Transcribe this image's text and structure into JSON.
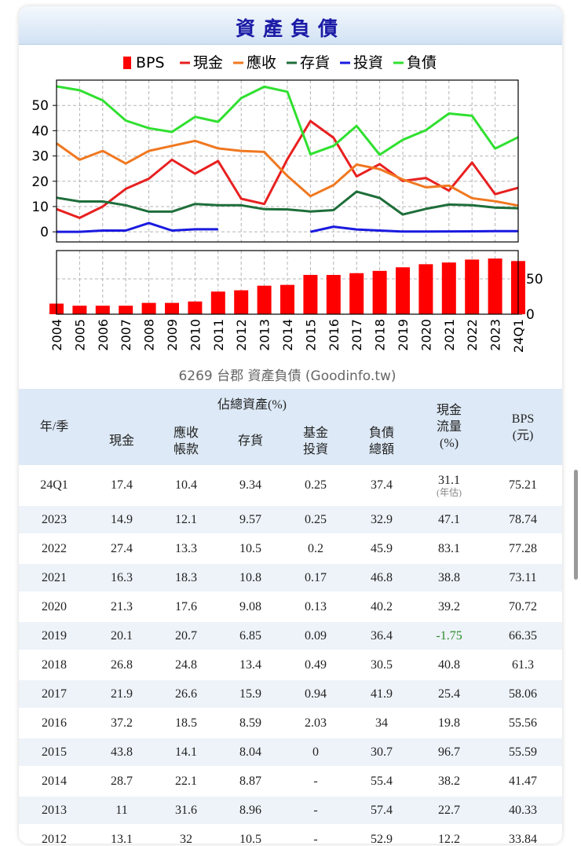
{
  "title": "資產負債",
  "chart_data": {
    "type": "line",
    "x": [
      "2004",
      "2005",
      "2006",
      "2007",
      "2008",
      "2009",
      "2010",
      "2011",
      "2012",
      "2013",
      "2014",
      "2015",
      "2016",
      "2017",
      "2018",
      "2019",
      "2020",
      "2021",
      "2022",
      "2023",
      "24Q1"
    ],
    "legend": [
      "BPS",
      "現金",
      "應收",
      "存貨",
      "投資",
      "負債"
    ],
    "caption": "6269 台郡 資產負債 (Goodinfo.tw)",
    "left_axis": {
      "ylim": [
        -4,
        60
      ],
      "ticks": [
        0,
        10,
        20,
        30,
        40,
        50
      ]
    },
    "right_axis": {
      "ylim": [
        0,
        90
      ],
      "ticks": [
        0,
        50
      ]
    },
    "bps": [
      15,
      12,
      12,
      12,
      16,
      16,
      18,
      32,
      33.84,
      40.33,
      41.47,
      55.59,
      55.56,
      58.06,
      61.3,
      66.35,
      70.72,
      73.11,
      77.28,
      78.74,
      75.21
    ],
    "series": [
      {
        "name": "現金",
        "color": "#e82020",
        "values": [
          9,
          5.5,
          10,
          17,
          21,
          28.5,
          23,
          28,
          13.1,
          11,
          28.7,
          43.8,
          37.2,
          21.9,
          26.8,
          20.1,
          21.3,
          16.3,
          27.4,
          14.9,
          17.4
        ]
      },
      {
        "name": "應收",
        "color": "#f07820",
        "values": [
          35,
          28.5,
          32,
          27,
          32,
          34,
          36,
          33,
          32,
          31.6,
          22.1,
          14.1,
          18.5,
          26.6,
          24.8,
          20.7,
          17.6,
          18.3,
          13.3,
          12.1,
          10.4
        ]
      },
      {
        "name": "存貨",
        "color": "#1e6e3a",
        "values": [
          13.5,
          12,
          12,
          10.5,
          8,
          8,
          11,
          10.5,
          10.5,
          8.96,
          8.87,
          8.04,
          8.59,
          15.9,
          13.4,
          6.85,
          9.08,
          10.8,
          10.5,
          9.57,
          9.34
        ]
      },
      {
        "name": "投資",
        "color": "#1a1ae0",
        "values": [
          0,
          0,
          0.5,
          0.5,
          3.5,
          0.5,
          1,
          1,
          null,
          null,
          null,
          0,
          2.03,
          0.94,
          0.49,
          0.09,
          0.13,
          0.17,
          0.2,
          0.25,
          0.25
        ]
      },
      {
        "name": "負債",
        "color": "#30e030",
        "values": [
          57.5,
          56,
          52,
          44,
          41,
          39.5,
          45.5,
          43.5,
          52.9,
          57.4,
          55.4,
          30.7,
          34,
          41.9,
          30.5,
          36.4,
          40.2,
          46.8,
          45.9,
          32.9,
          37.4
        ]
      }
    ],
    "colors": {
      "bps": "#ff0000",
      "grid": "#b4b4b4",
      "axis": "#000000"
    }
  },
  "table": {
    "header": {
      "year": "年/季",
      "group": "佔總資產(%)",
      "cash": "現金",
      "receivable": [
        "應收",
        "帳款"
      ],
      "inventory": "存貨",
      "fund": [
        "基金",
        "投資"
      ],
      "liability": [
        "負債",
        "總額"
      ],
      "cashflow": [
        "現金",
        "流量",
        "(%)"
      ],
      "bps": [
        "BPS",
        "(元)"
      ]
    },
    "estimate_note": "(年估)",
    "rows": [
      [
        "24Q1",
        "17.4",
        "10.4",
        "9.34",
        "0.25",
        "37.4",
        "31.1",
        "75.21"
      ],
      [
        "2023",
        "14.9",
        "12.1",
        "9.57",
        "0.25",
        "32.9",
        "47.1",
        "78.74"
      ],
      [
        "2022",
        "27.4",
        "13.3",
        "10.5",
        "0.2",
        "45.9",
        "83.1",
        "77.28"
      ],
      [
        "2021",
        "16.3",
        "18.3",
        "10.8",
        "0.17",
        "46.8",
        "38.8",
        "73.11"
      ],
      [
        "2020",
        "21.3",
        "17.6",
        "9.08",
        "0.13",
        "40.2",
        "39.2",
        "70.72"
      ],
      [
        "2019",
        "20.1",
        "20.7",
        "6.85",
        "0.09",
        "36.4",
        "-1.75",
        "66.35"
      ],
      [
        "2018",
        "26.8",
        "24.8",
        "13.4",
        "0.49",
        "30.5",
        "40.8",
        "61.3"
      ],
      [
        "2017",
        "21.9",
        "26.6",
        "15.9",
        "0.94",
        "41.9",
        "25.4",
        "58.06"
      ],
      [
        "2016",
        "37.2",
        "18.5",
        "8.59",
        "2.03",
        "34",
        "19.8",
        "55.56"
      ],
      [
        "2015",
        "43.8",
        "14.1",
        "8.04",
        "0",
        "30.7",
        "96.7",
        "55.59"
      ],
      [
        "2014",
        "28.7",
        "22.1",
        "8.87",
        "-",
        "55.4",
        "38.2",
        "41.47"
      ],
      [
        "2013",
        "11",
        "31.6",
        "8.96",
        "-",
        "57.4",
        "22.7",
        "40.33"
      ],
      [
        "2012",
        "13.1",
        "32",
        "10.5",
        "-",
        "52.9",
        "12.2",
        "33.84"
      ]
    ]
  }
}
